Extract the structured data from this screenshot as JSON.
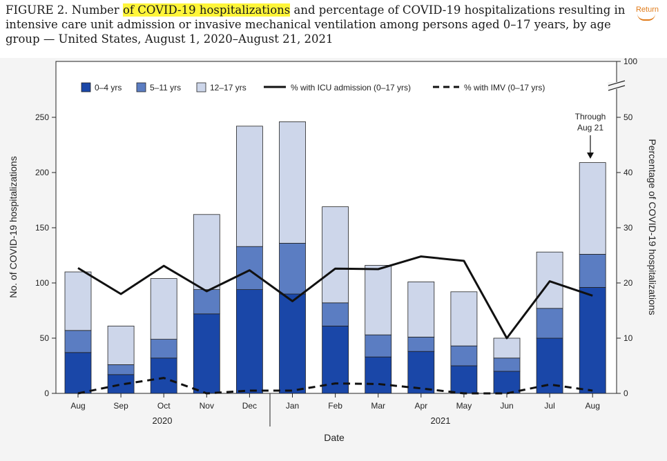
{
  "header": {
    "title_prefix": "FIGURE 2. Number ",
    "title_highlight": "of COVID-19 hospitalizations",
    "title_rest": " and percentage of COVID-19 hospitalizations resulting in intensive care unit admission or invasive mechanical ventilation among persons aged 0–17 years, by age group — United States, August 1, 2020–August 21, 2021"
  },
  "nav": {
    "return_label": "Return"
  },
  "colors": {
    "age_0_4": "#1a47a8",
    "age_5_11": "#5b7dc2",
    "age_12_17": "#cdd6ea",
    "highlight": "#fff53a",
    "return_link": "#e07b1a"
  },
  "chart_data": {
    "type": "bar",
    "stacked": true,
    "categories": [
      "Aug",
      "Sep",
      "Oct",
      "Nov",
      "Dec",
      "Jan",
      "Feb",
      "Mar",
      "Apr",
      "May",
      "Jun",
      "Jul",
      "Aug"
    ],
    "year_labels": [
      "2020",
      "2021"
    ],
    "series": [
      {
        "name": "0–4 yrs",
        "values": [
          37,
          17,
          32,
          72,
          94,
          90,
          61,
          33,
          38,
          25,
          20,
          50,
          96
        ]
      },
      {
        "name": "5–11 yrs",
        "values": [
          20,
          9,
          17,
          22,
          39,
          46,
          21,
          20,
          13,
          18,
          12,
          27,
          30
        ]
      },
      {
        "name": "12–17 yrs",
        "values": [
          53,
          35,
          55,
          68,
          109,
          110,
          87,
          63,
          50,
          49,
          18,
          51,
          83
        ]
      }
    ],
    "lines": [
      {
        "name": "% with ICU admission (0–17 yrs)",
        "style": "solid",
        "values": [
          22.7,
          18,
          23.1,
          18.5,
          22.3,
          16.7,
          22.6,
          22.5,
          24.8,
          24,
          10,
          20.3,
          17.7
        ]
      },
      {
        "name": "% with IMV (0–17 yrs)",
        "style": "dashed",
        "values": [
          0,
          1.6,
          2.8,
          0,
          0.5,
          0.5,
          1.8,
          1.7,
          0.9,
          0,
          0,
          1.6,
          0.5
        ]
      }
    ],
    "xlabel": "Date",
    "ylabel": "No. of  COVID-19 hospitalizations",
    "ylabel_right": "Percentage of COVID-19 hospitalizations",
    "ylim": [
      0,
      300
    ],
    "yticks": [
      0,
      50,
      100,
      150,
      200,
      250
    ],
    "ylim_right": [
      0,
      50
    ],
    "yticks_right": [
      0,
      10,
      20,
      30,
      40,
      50
    ],
    "ytick_right_break_label": "100",
    "annotation": {
      "text_line1": "Through",
      "text_line2": "Aug 21",
      "category_index": 12
    },
    "legend_position": "top",
    "grid": false
  }
}
